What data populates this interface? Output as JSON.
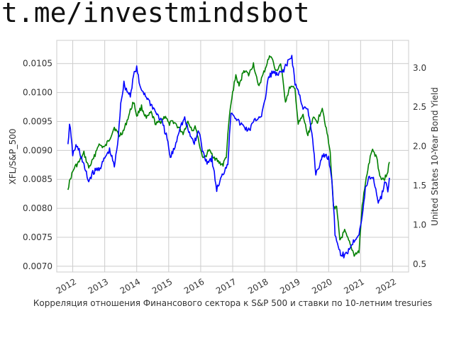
{
  "watermark": "t.me/investmindsbot",
  "chart_data": {
    "type": "line",
    "title": "",
    "xlabel": "Корреляция отношения Финансового сектора к S&P 500 и ставки по 10-летним tresuries",
    "x_ticks": [
      "2012",
      "2013",
      "2014",
      "2015",
      "2016",
      "2017",
      "2018",
      "2019",
      "2020",
      "2021",
      "2022"
    ],
    "x_range": [
      2011.5,
      2022.5
    ],
    "left_axis": {
      "label": "XFL/S&P_500",
      "color": "#008000",
      "ylim": [
        0.0069,
        0.0109
      ],
      "ticks": [
        "0.0070",
        "0.0075",
        "0.0080",
        "0.0085",
        "0.0090",
        "0.0095",
        "0.0100",
        "0.0105"
      ]
    },
    "right_axis": {
      "label": "United States 10-Year Bond Yield",
      "color": "#0000ff",
      "ylim": [
        0.4,
        3.35
      ],
      "ticks": [
        "0.5",
        "1.0",
        "1.5",
        "2.0",
        "2.5",
        "3.0"
      ]
    },
    "grid": true,
    "series": [
      {
        "name": "XFL/S&P_500",
        "color": "#008000",
        "axis": "left",
        "x": [
          2011.85,
          2011.95,
          2012.05,
          2012.2,
          2012.35,
          2012.5,
          2012.65,
          2012.8,
          2013.0,
          2013.15,
          2013.3,
          2013.45,
          2013.6,
          2013.75,
          2013.9,
          2014.0,
          2014.15,
          2014.3,
          2014.45,
          2014.6,
          2014.75,
          2014.9,
          2015.0,
          2015.15,
          2015.3,
          2015.45,
          2015.6,
          2015.75,
          2015.85,
          2016.0,
          2016.1,
          2016.25,
          2016.4,
          2016.55,
          2016.7,
          2016.8,
          2016.9,
          2017.0,
          2017.1,
          2017.2,
          2017.35,
          2017.5,
          2017.65,
          2017.8,
          2017.95,
          2018.1,
          2018.2,
          2018.35,
          2018.5,
          2018.65,
          2018.8,
          2018.95,
          2019.05,
          2019.2,
          2019.35,
          2019.5,
          2019.65,
          2019.8,
          2019.95,
          2020.05,
          2020.15,
          2020.25,
          2020.35,
          2020.5,
          2020.65,
          2020.8,
          2020.95,
          2021.05,
          2021.2,
          2021.35,
          2021.5,
          2021.6,
          2021.75,
          2021.85,
          2021.9
        ],
        "values": [
          0.00835,
          0.00855,
          0.0087,
          0.0088,
          0.00895,
          0.0087,
          0.00885,
          0.0091,
          0.00905,
          0.0092,
          0.0094,
          0.00925,
          0.00935,
          0.0096,
          0.00985,
          0.0096,
          0.00975,
          0.00955,
          0.00965,
          0.00945,
          0.0095,
          0.0096,
          0.00945,
          0.0095,
          0.0094,
          0.0093,
          0.0095,
          0.00935,
          0.0094,
          0.009,
          0.00885,
          0.009,
          0.0089,
          0.0088,
          0.00875,
          0.0089,
          0.0096,
          0.01,
          0.0103,
          0.0101,
          0.0104,
          0.0103,
          0.0105,
          0.0101,
          0.0103,
          0.01055,
          0.01065,
          0.01035,
          0.0105,
          0.00985,
          0.0101,
          0.01005,
          0.00945,
          0.0096,
          0.00925,
          0.00955,
          0.0095,
          0.00975,
          0.0093,
          0.00895,
          0.00805,
          0.008,
          0.00745,
          0.0076,
          0.0074,
          0.0072,
          0.00725,
          0.00805,
          0.0086,
          0.009,
          0.0089,
          0.00855,
          0.0085,
          0.00865,
          0.0088
        ]
      },
      {
        "name": "United States 10-Year Bond Yield",
        "color": "#0000ff",
        "axis": "right",
        "x": [
          2011.85,
          2011.9,
          2012.0,
          2012.1,
          2012.2,
          2012.35,
          2012.5,
          2012.6,
          2012.75,
          2012.9,
          2013.0,
          2013.15,
          2013.3,
          2013.4,
          2013.5,
          2013.6,
          2013.7,
          2013.8,
          2013.9,
          2014.0,
          2014.1,
          2014.2,
          2014.35,
          2014.5,
          2014.65,
          2014.8,
          2014.95,
          2015.05,
          2015.2,
          2015.35,
          2015.5,
          2015.65,
          2015.8,
          2015.95,
          2016.05,
          2016.2,
          2016.35,
          2016.5,
          2016.6,
          2016.75,
          2016.85,
          2016.95,
          2017.05,
          2017.2,
          2017.35,
          2017.5,
          2017.65,
          2017.75,
          2017.9,
          2018.0,
          2018.1,
          2018.25,
          2018.4,
          2018.55,
          2018.7,
          2018.85,
          2018.95,
          2019.05,
          2019.2,
          2019.35,
          2019.5,
          2019.6,
          2019.7,
          2019.85,
          2020.0,
          2020.1,
          2020.2,
          2020.35,
          2020.5,
          2020.65,
          2020.8,
          2020.95,
          2021.05,
          2021.15,
          2021.25,
          2021.4,
          2021.55,
          2021.65,
          2021.75,
          2021.85,
          2021.9
        ],
        "values": [
          2.0,
          2.3,
          1.9,
          2.0,
          1.95,
          1.75,
          1.55,
          1.65,
          1.7,
          1.75,
          1.85,
          1.95,
          1.75,
          2.0,
          2.55,
          2.8,
          2.7,
          2.65,
          2.9,
          3.0,
          2.75,
          2.7,
          2.6,
          2.5,
          2.4,
          2.3,
          2.1,
          1.85,
          2.0,
          2.25,
          2.35,
          2.15,
          2.05,
          2.2,
          1.95,
          1.8,
          1.85,
          1.45,
          1.55,
          1.7,
          1.8,
          2.45,
          2.4,
          2.3,
          2.25,
          2.2,
          2.3,
          2.35,
          2.4,
          2.55,
          2.85,
          2.95,
          2.9,
          2.95,
          3.05,
          3.15,
          2.8,
          2.7,
          2.5,
          2.45,
          2.1,
          1.65,
          1.75,
          1.9,
          1.85,
          1.6,
          0.9,
          0.65,
          0.6,
          0.7,
          0.8,
          0.9,
          1.1,
          1.45,
          1.6,
          1.6,
          1.3,
          1.35,
          1.55,
          1.45,
          1.6
        ]
      }
    ]
  }
}
